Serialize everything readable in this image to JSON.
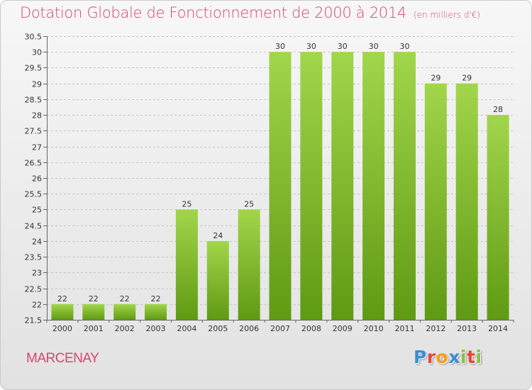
{
  "header": {
    "title": "Dotation Globale de Fonctionnement de 2000 à 2014",
    "unit": "(en milliers d'€)"
  },
  "footer": {
    "commune": "MARCENAY",
    "brand_letters": [
      "P",
      "r",
      "o",
      "x",
      "i",
      "t",
      "i"
    ],
    "brand_colors": [
      "#3a8fd0",
      "#e8463a",
      "#f3a01b",
      "#3a8fd0",
      "#84c341",
      "#e8463a",
      "#84c341"
    ]
  },
  "colors": {
    "bar_light": "#a2d64b",
    "bar_dark": "#5f9a13",
    "axis": "#666666",
    "grid": "#c4c4c4",
    "text": "#333333",
    "accent": "#d9466f"
  },
  "chart_data": {
    "type": "bar",
    "categories": [
      "2000",
      "2001",
      "2002",
      "2003",
      "2004",
      "2005",
      "2006",
      "2007",
      "2008",
      "2009",
      "2010",
      "2011",
      "2012",
      "2013",
      "2014"
    ],
    "values": [
      22,
      22,
      22,
      22,
      25,
      24,
      25,
      30,
      30,
      30,
      30,
      30,
      29,
      29,
      28
    ],
    "yticks": [
      "21.5",
      "22",
      "22.5",
      "23",
      "23.5",
      "24",
      "24.5",
      "25",
      "25.5",
      "26",
      "26.5",
      "27",
      "27.5",
      "28",
      "28.5",
      "29",
      "29.5",
      "30",
      "30.5"
    ],
    "ylim": [
      21.5,
      30.5
    ],
    "grid": true,
    "data_labels": true
  }
}
